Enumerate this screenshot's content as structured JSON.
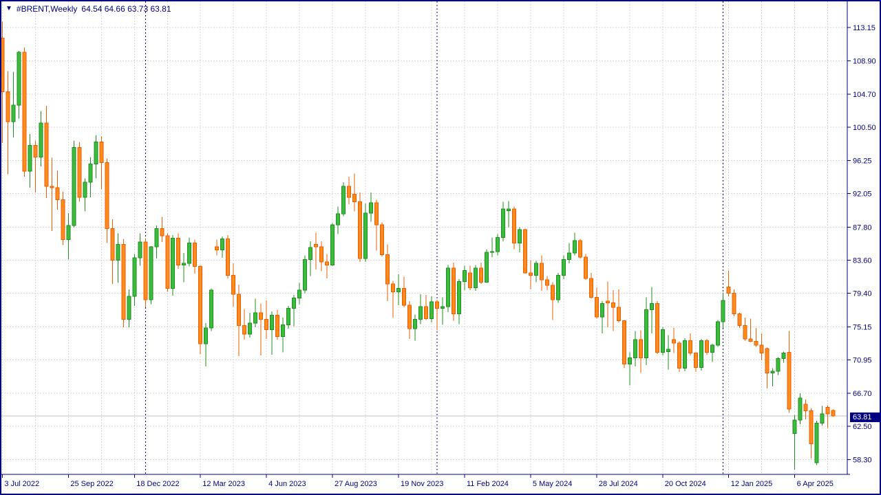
{
  "window": {
    "border_color": "#000080",
    "background": "#ffffff"
  },
  "title": {
    "symbol_period": "#BRENT,Weekly",
    "ohlc_text": "64.54 64.66 63.73 63.81",
    "icon": "down-triangle-icon",
    "text_color": "#000080"
  },
  "price_axis": {
    "labels": [
      "113.15",
      "108.90",
      "104.70",
      "100.50",
      "96.25",
      "92.05",
      "87.80",
      "83.60",
      "79.40",
      "75.15",
      "70.95",
      "66.70",
      "62.50",
      "58.30"
    ],
    "values": [
      113.15,
      108.9,
      104.7,
      100.5,
      96.25,
      92.05,
      87.8,
      83.6,
      79.4,
      75.15,
      70.95,
      66.7,
      62.5,
      58.3
    ],
    "text_color": "#000080"
  },
  "time_axis": {
    "labels": [
      "3 Jul 2022",
      "25 Sep 2022",
      "18 Dec 2022",
      "12 Mar 2023",
      "4 Jun 2023",
      "27 Aug 2023",
      "19 Nov 2023",
      "11 Feb 2024",
      "5 May 2024",
      "28 Jul 2024",
      "20 Oct 2024",
      "12 Jan 2025",
      "6 Apr 2025"
    ],
    "tick_bar_indexes": [
      0,
      12,
      24,
      36,
      48,
      60,
      72,
      84,
      96,
      108,
      120,
      132,
      144
    ],
    "text_color": "#000080"
  },
  "current_price": {
    "label": "63.81",
    "value": 63.81,
    "box_color": "#000080",
    "text_color": "#ffffff",
    "line_color": "#c0c0c0"
  },
  "grid": {
    "color": "#d6d6d6",
    "separator_color": "#000080"
  },
  "chart_data": {
    "type": "candlestick",
    "symbol": "#BRENT",
    "timeframe": "Weekly",
    "title": "#BRENT,Weekly 64.54 64.66 63.73 63.81",
    "start_date": "2022-07-03",
    "interval": "1 week",
    "ylim": [
      56.5,
      114.6
    ],
    "price_gridlines": [
      113.15,
      108.9,
      104.7,
      100.5,
      96.25,
      92.05,
      87.8,
      83.6,
      79.4,
      75.15,
      70.95,
      66.7,
      62.5,
      58.3
    ],
    "x_tick_labels": [
      "3 Jul 2022",
      "25 Sep 2022",
      "18 Dec 2022",
      "12 Mar 2023",
      "4 Jun 2023",
      "27 Aug 2023",
      "19 Nov 2023",
      "11 Feb 2024",
      "5 May 2024",
      "28 Jul 2024",
      "20 Oct 2024",
      "12 Jan 2025",
      "6 Apr 2025"
    ],
    "year_separator_bar_indexes": [
      26,
      79,
      131
    ],
    "year_separators": [
      "2023-01-01",
      "2024-01-07",
      "2025-01-05"
    ],
    "current_price": 63.81,
    "last_bar_ohlc": [
      64.54,
      64.66,
      63.73,
      63.81
    ],
    "up_color": "#3cbc3c",
    "up_border": "#1e8c1e",
    "down_color": "#ff8a1e",
    "down_border": "#e85d00",
    "bars": [
      [
        111.8,
        113.9,
        98.5,
        105.0
      ],
      [
        105.0,
        107.6,
        94.5,
        101.2
      ],
      [
        101.2,
        107.5,
        99.2,
        103.3
      ],
      [
        103.3,
        110.2,
        101.6,
        110.0
      ],
      [
        110.0,
        110.6,
        94.2,
        94.9
      ],
      [
        94.9,
        99.6,
        92.8,
        98.2
      ],
      [
        98.2,
        98.8,
        92.2,
        96.7
      ],
      [
        96.7,
        102.5,
        95.5,
        101.0
      ],
      [
        101.0,
        103.2,
        91.5,
        93.0
      ],
      [
        93.0,
        96.6,
        87.3,
        92.8
      ],
      [
        92.8,
        95.0,
        90.0,
        91.3
      ],
      [
        91.3,
        92.3,
        85.5,
        86.2
      ],
      [
        86.2,
        89.6,
        83.7,
        88.0
      ],
      [
        88.0,
        98.8,
        87.8,
        97.9
      ],
      [
        97.9,
        98.6,
        91.0,
        91.6
      ],
      [
        91.6,
        94.0,
        89.8,
        93.5
      ],
      [
        93.5,
        96.7,
        91.6,
        95.8
      ],
      [
        95.8,
        99.5,
        94.0,
        98.6
      ],
      [
        98.6,
        99.3,
        92.6,
        96.0
      ],
      [
        96.0,
        96.5,
        85.8,
        87.6
      ],
      [
        87.6,
        88.8,
        80.6,
        83.6
      ],
      [
        83.6,
        87.0,
        80.7,
        85.6
      ],
      [
        85.6,
        86.3,
        75.1,
        76.1
      ],
      [
        76.1,
        79.9,
        75.1,
        79.0
      ],
      [
        79.0,
        84.4,
        77.8,
        83.9
      ],
      [
        83.9,
        87.0,
        82.9,
        85.9
      ],
      [
        85.9,
        86.4,
        77.6,
        78.6
      ],
      [
        78.6,
        85.4,
        78.0,
        85.3
      ],
      [
        85.3,
        88.0,
        83.8,
        87.6
      ],
      [
        87.6,
        89.1,
        85.9,
        86.7
      ],
      [
        86.7,
        87.0,
        79.6,
        80.0
      ],
      [
        80.0,
        86.8,
        79.1,
        86.4
      ],
      [
        86.4,
        87.0,
        82.5,
        83.0
      ],
      [
        83.0,
        84.5,
        80.8,
        83.2
      ],
      [
        83.2,
        86.5,
        82.8,
        85.8
      ],
      [
        85.8,
        86.2,
        81.9,
        82.8
      ],
      [
        82.8,
        83.0,
        71.7,
        73.0
      ],
      [
        73.0,
        75.6,
        70.1,
        75.0
      ],
      [
        75.0,
        80.0,
        74.6,
        79.8
      ],
      [
        85.3,
        86.2,
        84.2,
        84.9
      ],
      [
        84.9,
        86.6,
        83.9,
        86.3
      ],
      [
        86.3,
        86.8,
        81.3,
        81.7
      ],
      [
        81.7,
        83.2,
        77.7,
        79.3
      ],
      [
        79.3,
        80.5,
        71.4,
        75.3
      ],
      [
        75.3,
        77.4,
        73.5,
        74.2
      ],
      [
        74.2,
        76.9,
        73.8,
        75.6
      ],
      [
        75.6,
        78.7,
        75.1,
        76.9
      ],
      [
        76.9,
        78.1,
        71.5,
        76.1
      ],
      [
        76.1,
        78.5,
        73.6,
        74.8
      ],
      [
        74.8,
        77.1,
        71.6,
        76.6
      ],
      [
        76.6,
        77.3,
        73.5,
        73.9
      ],
      [
        73.9,
        76.3,
        71.9,
        75.4
      ],
      [
        75.4,
        77.8,
        74.9,
        77.5
      ],
      [
        77.5,
        79.2,
        75.2,
        78.8
      ],
      [
        78.8,
        80.7,
        78.0,
        79.8
      ],
      [
        79.8,
        84.2,
        79.4,
        83.7
      ],
      [
        83.7,
        86.0,
        81.6,
        85.2
      ],
      [
        85.6,
        87.1,
        82.4,
        85.3
      ],
      [
        85.3,
        86.0,
        82.2,
        83.4
      ],
      [
        83.4,
        84.4,
        81.3,
        83.0
      ],
      [
        83.0,
        88.3,
        82.9,
        88.1
      ],
      [
        88.1,
        90.4,
        86.9,
        89.5
      ],
      [
        89.5,
        93.5,
        89.2,
        93.0
      ],
      [
        93.0,
        94.2,
        90.7,
        91.6
      ],
      [
        92.0,
        94.6,
        89.8,
        91.0
      ],
      [
        91.0,
        92.2,
        83.4,
        83.8
      ],
      [
        83.8,
        90.8,
        83.4,
        89.6
      ],
      [
        89.6,
        92.2,
        88.5,
        90.9
      ],
      [
        90.9,
        91.3,
        84.8,
        88.1
      ],
      [
        88.1,
        88.4,
        84.1,
        84.3
      ],
      [
        84.3,
        85.6,
        78.4,
        80.6
      ],
      [
        80.6,
        81.0,
        76.3,
        79.6
      ],
      [
        79.6,
        81.8,
        77.9,
        80.0
      ],
      [
        80.0,
        81.5,
        77.6,
        77.9
      ],
      [
        77.9,
        78.4,
        73.6,
        74.9
      ],
      [
        74.9,
        76.7,
        73.4,
        76.1
      ],
      [
        76.1,
        79.3,
        75.5,
        77.7
      ],
      [
        77.7,
        79.2,
        76.0,
        76.2
      ],
      [
        76.2,
        79.0,
        75.7,
        78.3
      ],
      [
        78.3,
        78.6,
        74.7,
        77.5
      ],
      [
        77.5,
        78.9,
        75.4,
        77.7
      ],
      [
        77.7,
        83.0,
        77.0,
        82.6
      ],
      [
        82.6,
        83.3,
        75.9,
        76.8
      ],
      [
        76.8,
        81.2,
        75.5,
        80.9
      ],
      [
        80.9,
        82.9,
        79.8,
        82.3
      ],
      [
        82.0,
        82.9,
        79.8,
        80.1
      ],
      [
        80.1,
        83.0,
        79.7,
        82.6
      ],
      [
        82.6,
        83.3,
        80.6,
        80.8
      ],
      [
        80.8,
        85.0,
        80.7,
        84.6
      ],
      [
        84.6,
        86.5,
        84.0,
        84.7
      ],
      [
        84.7,
        86.9,
        84.2,
        86.5
      ],
      [
        86.5,
        91.0,
        86.0,
        90.1
      ],
      [
        89.9,
        91.1,
        87.8,
        90.1
      ],
      [
        90.1,
        90.4,
        85.0,
        85.8
      ],
      [
        85.8,
        87.8,
        84.6,
        87.5
      ],
      [
        87.5,
        87.6,
        81.9,
        82.0
      ],
      [
        82.0,
        83.6,
        79.9,
        81.7
      ],
      [
        81.7,
        83.5,
        80.8,
        83.2
      ],
      [
        83.2,
        84.2,
        79.7,
        81.1
      ],
      [
        81.1,
        81.6,
        79.8,
        80.4
      ],
      [
        80.4,
        80.8,
        76.0,
        78.6
      ],
      [
        78.6,
        82.0,
        78.2,
        81.7
      ],
      [
        81.7,
        84.2,
        81.2,
        83.7
      ],
      [
        83.7,
        85.8,
        83.2,
        84.5
      ],
      [
        84.5,
        87.1,
        84.2,
        86.1
      ],
      [
        86.1,
        86.3,
        83.8,
        84.0
      ],
      [
        84.0,
        84.4,
        81.1,
        81.3
      ],
      [
        81.3,
        82.0,
        78.7,
        78.9
      ],
      [
        78.9,
        80.1,
        76.2,
        76.4
      ],
      [
        76.4,
        78.4,
        74.3,
        78.1
      ],
      [
        78.4,
        80.9,
        75.1,
        78.2
      ],
      [
        78.2,
        79.8,
        74.6,
        77.6
      ],
      [
        77.6,
        79.9,
        75.7,
        75.9
      ],
      [
        75.9,
        76.0,
        69.9,
        70.4
      ],
      [
        70.4,
        71.9,
        67.7,
        71.2
      ],
      [
        71.2,
        74.6,
        70.1,
        73.5
      ],
      [
        73.5,
        74.7,
        69.3,
        71.2
      ],
      [
        71.2,
        78.9,
        70.3,
        77.3
      ],
      [
        77.3,
        80.2,
        74.3,
        78.1
      ],
      [
        78.1,
        78.4,
        71.7,
        71.9
      ],
      [
        71.9,
        75.1,
        71.5,
        74.8
      ],
      [
        72.0,
        74.1,
        69.7,
        72.3
      ],
      [
        73.5,
        75.0,
        71.8,
        73.1
      ],
      [
        73.1,
        73.3,
        69.4,
        69.9
      ],
      [
        69.9,
        73.7,
        69.5,
        73.4
      ],
      [
        73.4,
        74.3,
        71.5,
        71.8
      ],
      [
        71.8,
        71.9,
        69.4,
        70.0
      ],
      [
        70.0,
        73.6,
        69.6,
        73.4
      ],
      [
        73.4,
        73.6,
        71.6,
        71.9
      ],
      [
        71.9,
        73.0,
        70.7,
        72.8
      ],
      [
        72.8,
        76.0,
        72.6,
        75.8
      ],
      [
        75.8,
        79.5,
        75.0,
        78.5
      ],
      [
        80.2,
        82.3,
        79.0,
        79.4
      ],
      [
        79.4,
        79.9,
        76.5,
        76.8
      ],
      [
        76.8,
        76.9,
        75.0,
        75.3
      ],
      [
        75.3,
        76.3,
        73.4,
        73.6
      ],
      [
        73.6,
        76.2,
        73.2,
        73.3
      ],
      [
        73.3,
        75.0,
        72.6,
        72.8
      ],
      [
        72.8,
        74.3,
        70.9,
        71.8
      ],
      [
        72.4,
        72.5,
        67.3,
        69.3
      ],
      [
        69.3,
        69.9,
        67.6,
        69.5
      ],
      [
        69.5,
        71.3,
        69.0,
        71.1
      ],
      [
        71.1,
        72.0,
        70.6,
        71.8
      ],
      [
        71.9,
        74.6,
        64.2,
        64.7
      ],
      [
        61.6,
        63.9,
        57.0,
        63.3
      ],
      [
        63.3,
        66.7,
        62.8,
        66.1
      ],
      [
        65.3,
        65.9,
        63.4,
        64.5
      ],
      [
        64.5,
        64.8,
        58.4,
        60.3
      ],
      [
        57.9,
        63.2,
        57.6,
        62.9
      ],
      [
        62.9,
        65.1,
        62.6,
        64.1
      ],
      [
        64.9,
        65.2,
        62.3,
        64.1
      ],
      [
        64.54,
        64.66,
        63.73,
        63.81
      ]
    ]
  }
}
